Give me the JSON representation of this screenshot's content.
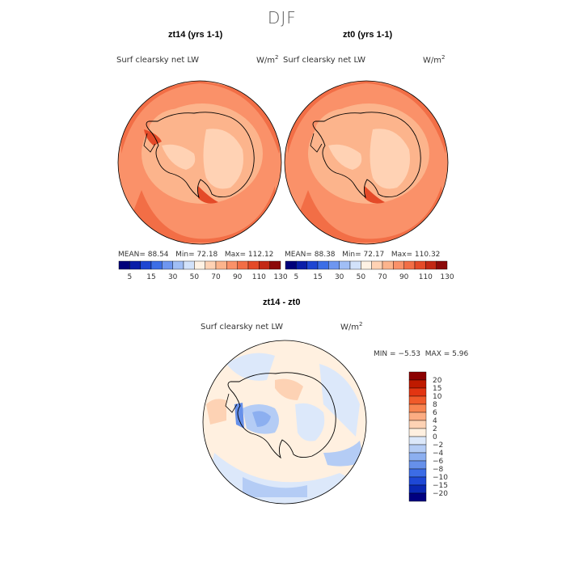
{
  "figure": {
    "season_title": "DJF",
    "panels": [
      {
        "title": "zt14 (yrs 1-1)",
        "variable": "Surf clearsky net LW",
        "units_base": "W/m",
        "units_exp": "2",
        "stats": {
          "mean_label": "MEAN=",
          "mean": "88.54",
          "min_label": "Min=",
          "min": "72.18",
          "max_label": "Max=",
          "max": "112.12"
        }
      },
      {
        "title": "zt0 (yrs 1-1)",
        "variable": "Surf clearsky net LW",
        "units_base": "W/m",
        "units_exp": "2",
        "stats": {
          "mean_label": "MEAN=",
          "mean": "88.38",
          "min_label": "Min=",
          "min": "72.17",
          "max_label": "Max=",
          "max": "110.32"
        }
      },
      {
        "title": "zt14 - zt0",
        "variable": "Surf clearsky net LW",
        "units_base": "W/m",
        "units_exp": "2",
        "stats": {
          "min_label": "MIN =",
          "min": "−5.53",
          "max_label": "MAX =",
          "max": "5.96"
        }
      }
    ],
    "abs_colorbar": {
      "colors": [
        "#00007a",
        "#0a1ea8",
        "#1e46d2",
        "#3c6ee6",
        "#6e96f0",
        "#a0bef5",
        "#d2e2fa",
        "#fff2e4",
        "#ffd2b4",
        "#fcb48c",
        "#fa9169",
        "#f26e46",
        "#e44a28",
        "#c32814",
        "#8c0a0a"
      ],
      "tick_labels": [
        "5",
        "15",
        "30",
        "50",
        "70",
        "90",
        "110",
        "130"
      ]
    },
    "diff_colorbar": {
      "colors": [
        "#8c0000",
        "#bf1a00",
        "#e23512",
        "#f05a2a",
        "#f88450",
        "#fcac82",
        "#fdd2b4",
        "#fff0e0",
        "#dce8fa",
        "#b4ccf5",
        "#8caff0",
        "#6690ea",
        "#3c6ce6",
        "#1e48d6",
        "#0a28b4",
        "#000080"
      ],
      "tick_labels": [
        "20",
        "15",
        "10",
        "8",
        "6",
        "4",
        "2",
        "0",
        "−2",
        "−4",
        "−6",
        "−8",
        "−10",
        "−15",
        "−20"
      ]
    }
  }
}
